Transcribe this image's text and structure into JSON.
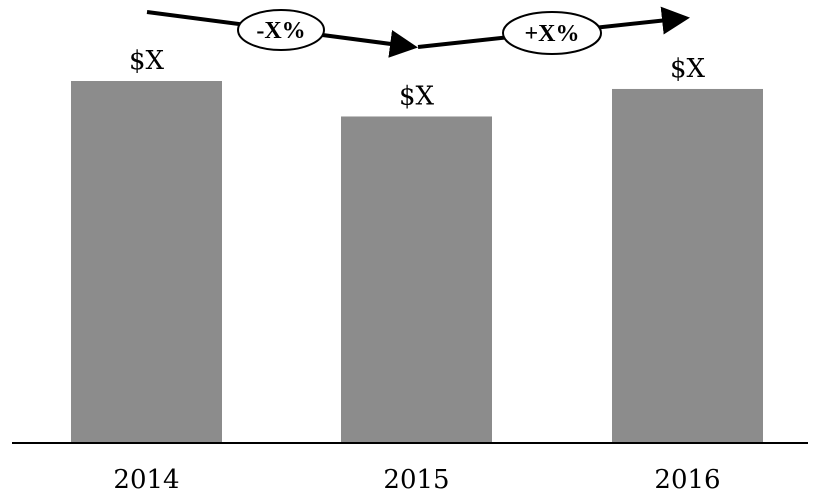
{
  "chart_data": {
    "type": "bar",
    "categories": [
      "2014",
      "2015",
      "2016"
    ],
    "values": [
      100,
      90.2,
      97.8
    ],
    "data_labels": [
      "$X",
      "$X",
      "$X"
    ],
    "changes": [
      {
        "from": "2014",
        "to": "2015",
        "label": "-X%"
      },
      {
        "from": "2015",
        "to": "2016",
        "label": "+X%"
      }
    ],
    "title": "",
    "xlabel": "",
    "ylabel": "",
    "grid": false,
    "legend": "none",
    "colors": {
      "bar": "#8c8c8c",
      "axis": "#000000",
      "arrow": "#000000"
    }
  }
}
